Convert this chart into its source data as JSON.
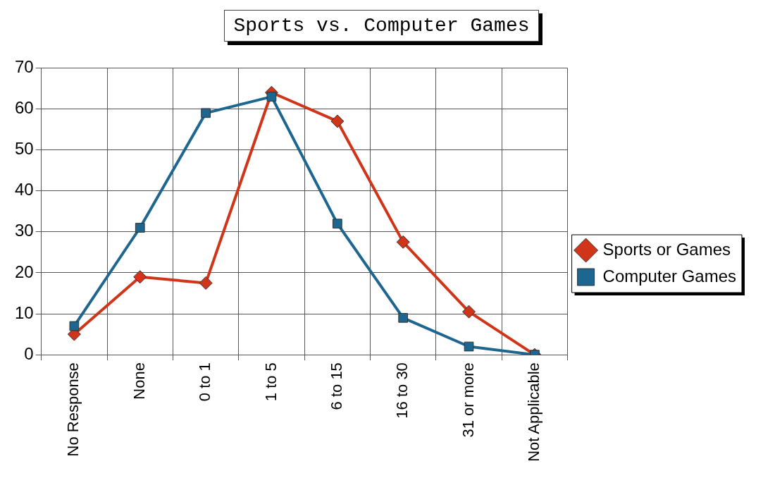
{
  "chart_data": {
    "type": "line",
    "title": "Sports vs. Computer Games",
    "categories": [
      "No Response",
      "None",
      "0 to 1",
      "1 to 5",
      "6 to 15",
      "16 to 30",
      "31 or more",
      "Not Applicable"
    ],
    "series": [
      {
        "name": "Sports or Games",
        "color": "#d0351a",
        "marker": "diamond",
        "values": [
          5,
          19,
          17.5,
          64,
          57,
          27.5,
          10.5,
          0
        ]
      },
      {
        "name": "Computer Games",
        "color": "#1c6690",
        "marker": "square",
        "values": [
          7,
          31,
          59,
          63,
          32,
          9,
          2,
          0
        ]
      }
    ],
    "ylim": [
      0,
      70
    ],
    "yticks": [
      0,
      10,
      20,
      30,
      40,
      50,
      60,
      70
    ],
    "grid": true,
    "legend": "right",
    "line_style": "solid"
  }
}
